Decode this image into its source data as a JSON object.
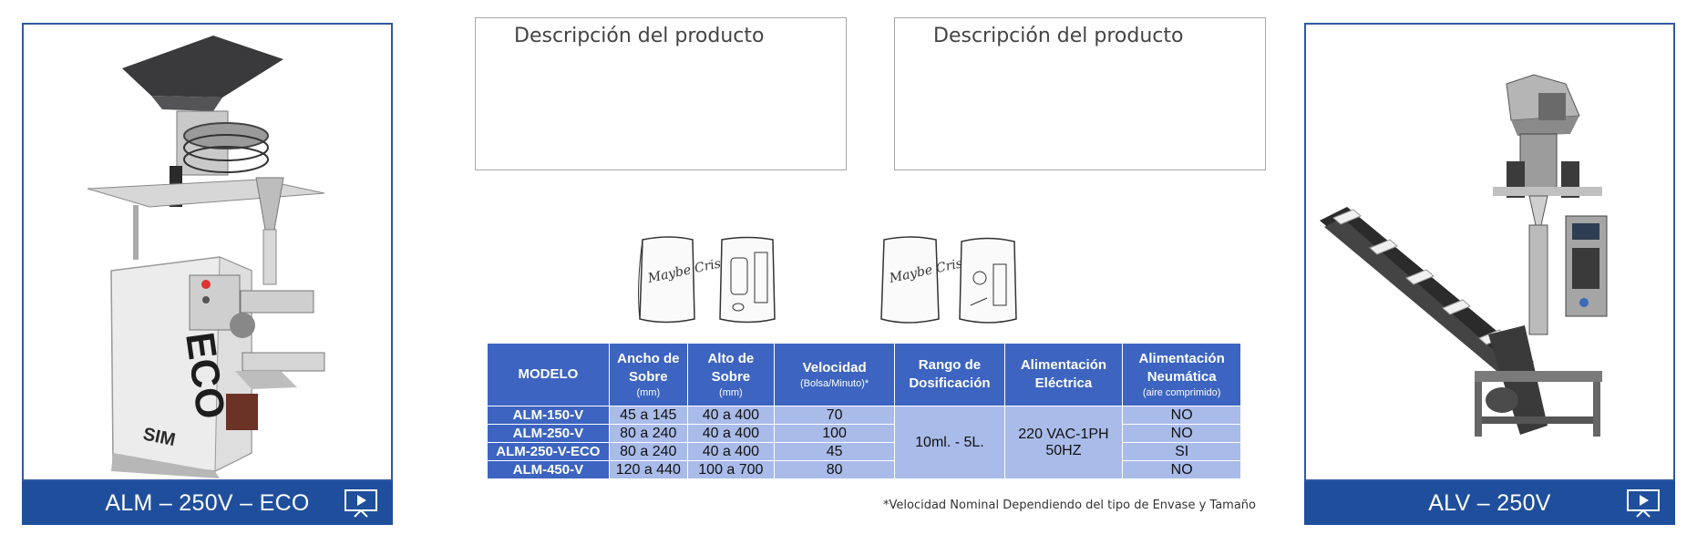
{
  "cards": [
    {
      "title": "ALM – 250V – ECO",
      "brand": "SIM",
      "logo_text": "ECO"
    },
    {
      "title": "ALV – 250V"
    }
  ],
  "description_boxes": [
    {
      "title": "Descripción del producto"
    },
    {
      "title": "Descripción del producto"
    }
  ],
  "bag_text": "Maybe Crisps",
  "table": {
    "headers": [
      {
        "label": "MODELO",
        "unit": ""
      },
      {
        "label": "Ancho de Sobre",
        "unit": "(mm)"
      },
      {
        "label": "Alto de Sobre",
        "unit": "(mm)"
      },
      {
        "label": "Velocidad",
        "unit": "(Bolsa/Minuto)*"
      },
      {
        "label": "Rango de Dosificación",
        "unit": ""
      },
      {
        "label": "Alimentación Eléctrica",
        "unit": ""
      },
      {
        "label": "Alimentación Neumática",
        "unit": "(aire comprimido)"
      }
    ],
    "rows": [
      {
        "model": "ALM-150-V",
        "ancho": "45 a 145",
        "alto": "40 a 400",
        "velocidad": "70",
        "neumatica": "NO"
      },
      {
        "model": "ALM-250-V",
        "ancho": "80 a 240",
        "alto": "40 a 400",
        "velocidad": "100",
        "neumatica": "NO"
      },
      {
        "model": "ALM-250-V-ECO",
        "ancho": "80 a 240",
        "alto": "40 a 400",
        "velocidad": "45",
        "neumatica": "SI"
      },
      {
        "model": "ALM-450-V",
        "ancho": "120 a 440",
        "alto": "100 a 700",
        "velocidad": "80",
        "neumatica": "NO"
      }
    ],
    "rango": "10ml. - 5L.",
    "electrica_line1": "220 VAC-1PH",
    "electrica_line2": "50HZ"
  },
  "footnote": "*Velocidad Nominal Dependiendo del tipo de Envase y Tamaño",
  "colors": {
    "accent": "#1f4f9c",
    "header_blue": "#3c64c0",
    "cell_blue": "#a9bbe9"
  },
  "icons": [
    "presentation-play-icon"
  ]
}
